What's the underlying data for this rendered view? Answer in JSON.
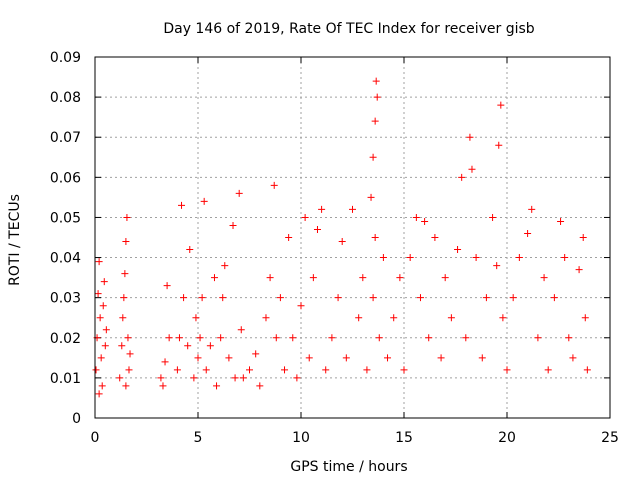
{
  "chart_data": {
    "type": "scatter",
    "title": "Day 146 of 2019, Rate Of TEC Index for receiver gisb",
    "xlabel": "GPS time / hours",
    "ylabel": "ROTI / TECUs",
    "xlim": [
      0,
      25
    ],
    "ylim": [
      0,
      0.09
    ],
    "xticks": [
      0,
      5,
      10,
      15,
      20,
      25
    ],
    "xtick_labels": [
      "0",
      "5",
      "10",
      "15",
      "20",
      "25"
    ],
    "yticks": [
      0,
      0.01,
      0.02,
      0.03,
      0.04,
      0.05,
      0.06,
      0.07,
      0.08,
      0.09
    ],
    "ytick_labels": [
      "0",
      "0.01",
      "0.02",
      "0.03",
      "0.04",
      "0.05",
      "0.06",
      "0.07",
      "0.08",
      "0.09"
    ],
    "grid": true,
    "marker": "+",
    "color": "#ff0000",
    "series": [
      {
        "name": "ROTI",
        "note": "dense point cloud; representative sampled points (hours, TECU)",
        "points": [
          [
            0.05,
            0.012
          ],
          [
            0.1,
            0.02
          ],
          [
            0.15,
            0.031
          ],
          [
            0.2,
            0.039
          ],
          [
            0.25,
            0.025
          ],
          [
            0.3,
            0.015
          ],
          [
            0.35,
            0.008
          ],
          [
            0.4,
            0.028
          ],
          [
            0.45,
            0.034
          ],
          [
            0.5,
            0.018
          ],
          [
            0.55,
            0.022
          ],
          [
            0.2,
            0.006
          ],
          [
            1.2,
            0.01
          ],
          [
            1.3,
            0.018
          ],
          [
            1.35,
            0.025
          ],
          [
            1.4,
            0.03
          ],
          [
            1.45,
            0.036
          ],
          [
            1.5,
            0.044
          ],
          [
            1.55,
            0.05
          ],
          [
            1.6,
            0.02
          ],
          [
            1.65,
            0.012
          ],
          [
            1.7,
            0.016
          ],
          [
            1.5,
            0.008
          ],
          [
            3.2,
            0.01
          ],
          [
            3.4,
            0.014
          ],
          [
            3.6,
            0.02
          ],
          [
            3.5,
            0.033
          ],
          [
            3.3,
            0.008
          ],
          [
            4.0,
            0.012
          ],
          [
            4.1,
            0.02
          ],
          [
            4.2,
            0.053
          ],
          [
            4.3,
            0.03
          ],
          [
            4.5,
            0.018
          ],
          [
            4.6,
            0.042
          ],
          [
            4.8,
            0.01
          ],
          [
            4.9,
            0.025
          ],
          [
            5.0,
            0.015
          ],
          [
            5.1,
            0.02
          ],
          [
            5.2,
            0.03
          ],
          [
            5.3,
            0.054
          ],
          [
            5.4,
            0.012
          ],
          [
            5.6,
            0.018
          ],
          [
            5.8,
            0.035
          ],
          [
            5.9,
            0.008
          ],
          [
            6.1,
            0.02
          ],
          [
            6.2,
            0.03
          ],
          [
            6.3,
            0.038
          ],
          [
            6.5,
            0.015
          ],
          [
            6.7,
            0.048
          ],
          [
            6.8,
            0.01
          ],
          [
            7.0,
            0.056
          ],
          [
            7.1,
            0.022
          ],
          [
            7.2,
            0.01
          ],
          [
            7.5,
            0.012
          ],
          [
            7.8,
            0.016
          ],
          [
            8.0,
            0.008
          ],
          [
            8.3,
            0.025
          ],
          [
            8.5,
            0.035
          ],
          [
            8.7,
            0.058
          ],
          [
            8.8,
            0.02
          ],
          [
            9.0,
            0.03
          ],
          [
            9.2,
            0.012
          ],
          [
            9.4,
            0.045
          ],
          [
            9.6,
            0.02
          ],
          [
            9.8,
            0.01
          ],
          [
            10.0,
            0.028
          ],
          [
            10.2,
            0.05
          ],
          [
            10.4,
            0.015
          ],
          [
            10.6,
            0.035
          ],
          [
            10.8,
            0.047
          ],
          [
            11.0,
            0.052
          ],
          [
            11.2,
            0.012
          ],
          [
            11.5,
            0.02
          ],
          [
            11.8,
            0.03
          ],
          [
            12.0,
            0.044
          ],
          [
            12.2,
            0.015
          ],
          [
            12.5,
            0.052
          ],
          [
            12.8,
            0.025
          ],
          [
            13.0,
            0.035
          ],
          [
            13.2,
            0.012
          ],
          [
            13.4,
            0.055
          ],
          [
            13.5,
            0.065
          ],
          [
            13.6,
            0.074
          ],
          [
            13.65,
            0.084
          ],
          [
            13.7,
            0.08
          ],
          [
            13.5,
            0.03
          ],
          [
            13.6,
            0.045
          ],
          [
            13.8,
            0.02
          ],
          [
            14.0,
            0.04
          ],
          [
            14.2,
            0.015
          ],
          [
            14.5,
            0.025
          ],
          [
            14.8,
            0.035
          ],
          [
            15.0,
            0.012
          ],
          [
            15.3,
            0.04
          ],
          [
            15.6,
            0.05
          ],
          [
            15.8,
            0.03
          ],
          [
            16.0,
            0.049
          ],
          [
            16.2,
            0.02
          ],
          [
            16.5,
            0.045
          ],
          [
            16.8,
            0.015
          ],
          [
            17.0,
            0.035
          ],
          [
            17.3,
            0.025
          ],
          [
            17.6,
            0.042
          ],
          [
            17.8,
            0.06
          ],
          [
            18.0,
            0.02
          ],
          [
            18.2,
            0.07
          ],
          [
            18.3,
            0.062
          ],
          [
            18.5,
            0.04
          ],
          [
            18.8,
            0.015
          ],
          [
            19.0,
            0.03
          ],
          [
            19.3,
            0.05
          ],
          [
            19.5,
            0.038
          ],
          [
            19.6,
            0.068
          ],
          [
            19.7,
            0.078
          ],
          [
            19.8,
            0.025
          ],
          [
            20.0,
            0.012
          ],
          [
            20.3,
            0.03
          ],
          [
            20.6,
            0.04
          ],
          [
            21.0,
            0.046
          ],
          [
            21.2,
            0.052
          ],
          [
            21.5,
            0.02
          ],
          [
            21.8,
            0.035
          ],
          [
            22.0,
            0.012
          ],
          [
            22.3,
            0.03
          ],
          [
            22.6,
            0.049
          ],
          [
            22.8,
            0.04
          ],
          [
            23.0,
            0.02
          ],
          [
            23.2,
            0.015
          ],
          [
            23.5,
            0.037
          ],
          [
            23.7,
            0.045
          ],
          [
            23.8,
            0.025
          ],
          [
            23.9,
            0.012
          ]
        ]
      }
    ]
  }
}
